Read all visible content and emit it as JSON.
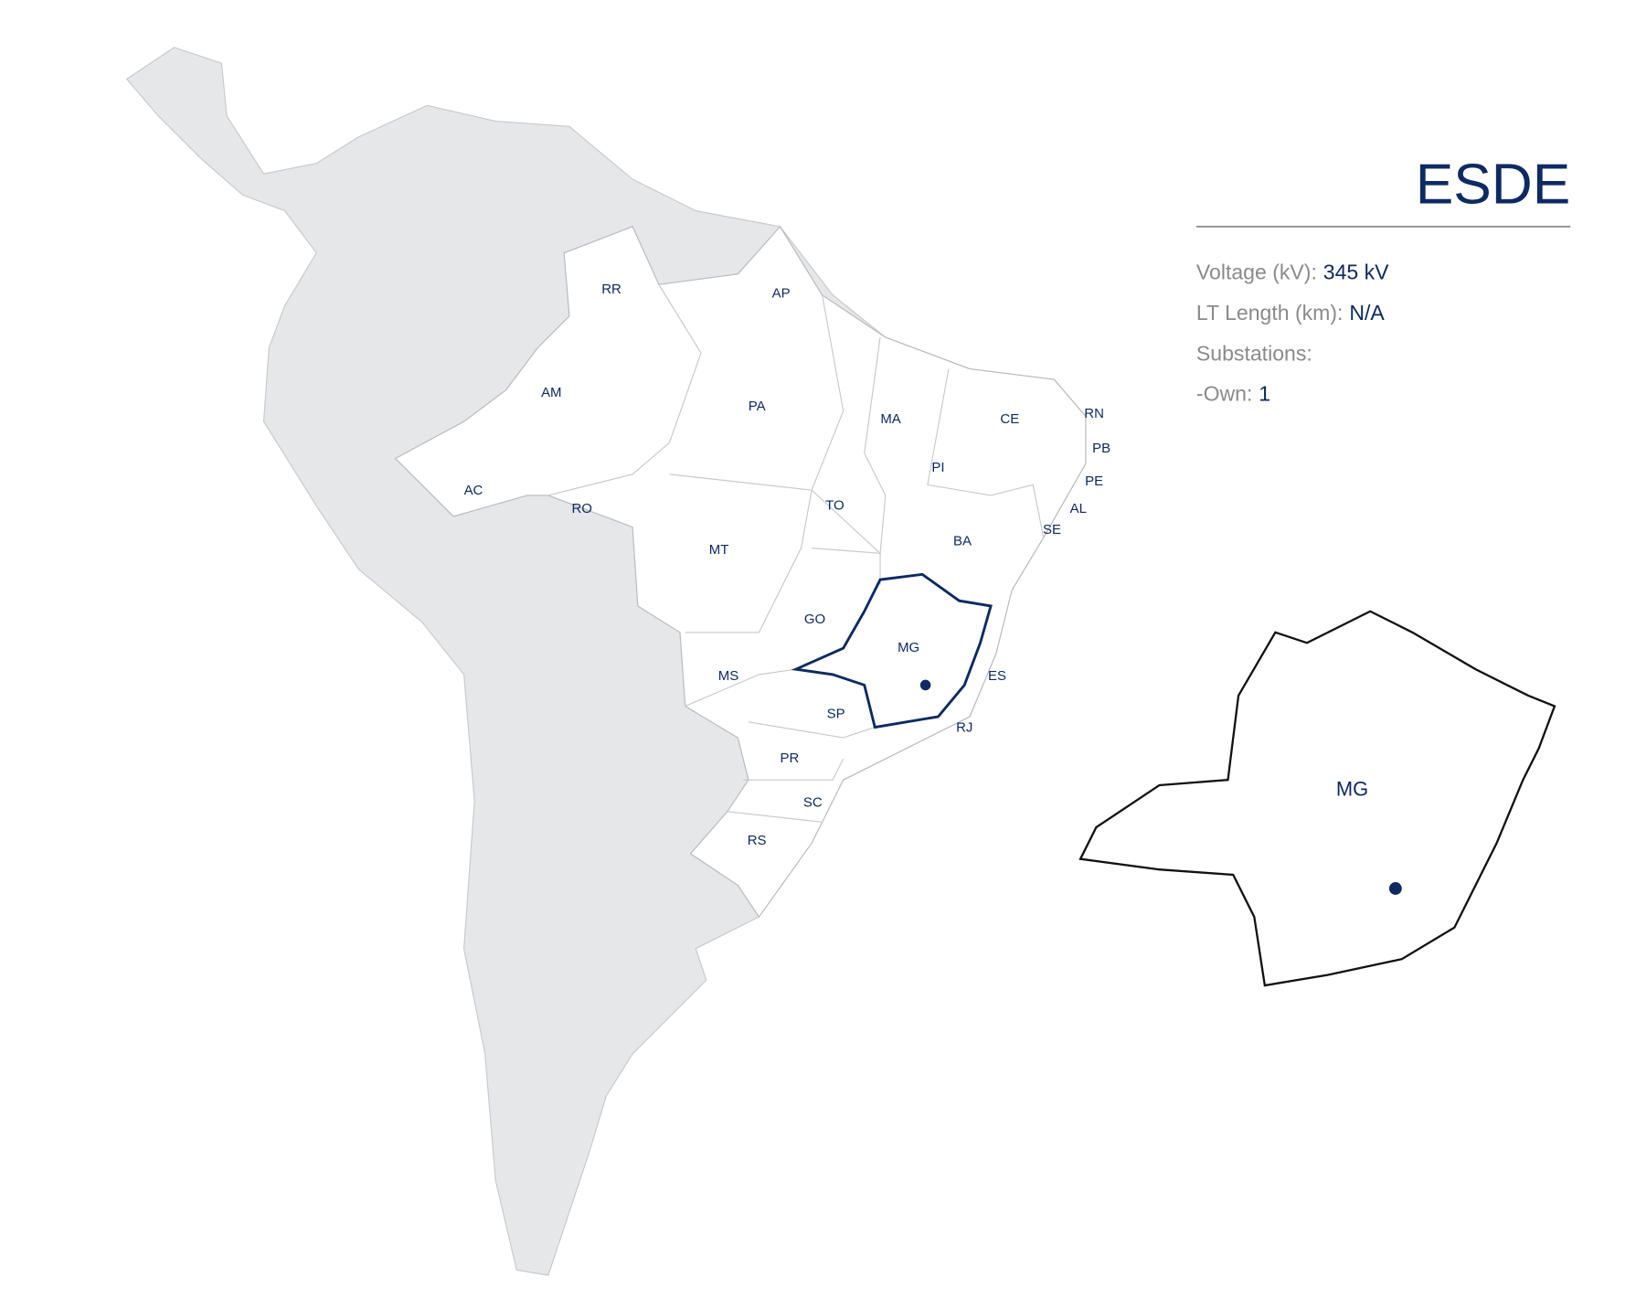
{
  "title": "ESDE",
  "info": [
    {
      "label": "Voltage (kV):",
      "value": "345 kV"
    },
    {
      "label": "LT Length (km):",
      "value": "N/A"
    },
    {
      "label": "Substations:"
    },
    {
      "label": "-Own:",
      "value": "1"
    }
  ],
  "map": {
    "states": [
      "RR",
      "AP",
      "AM",
      "PA",
      "MA",
      "CE",
      "RN",
      "PB",
      "PI",
      "PE",
      "AL",
      "SE",
      "AC",
      "RO",
      "TO",
      "MT",
      "BA",
      "GO",
      "MG",
      "MS",
      "ES",
      "SP",
      "RJ",
      "PR",
      "SC",
      "RS"
    ]
  },
  "inset": {
    "label": "MG"
  }
}
